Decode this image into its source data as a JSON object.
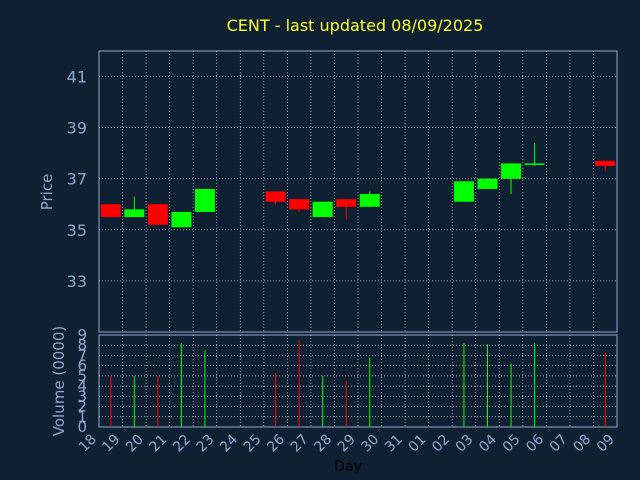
{
  "chart_data": {
    "type": "candlestick",
    "title": "CENT - last updated 08/09/2025",
    "ylabel": "Price",
    "volume_label": "Volume (0000)",
    "xlabel": "Day",
    "ylim": [
      31,
      42
    ],
    "volume_ylim": [
      0,
      9
    ],
    "y_ticks": [
      "33",
      "35",
      "37",
      "39",
      "41"
    ],
    "volume_ticks": [
      "0",
      "1",
      "2",
      "3",
      "4",
      "5",
      "6",
      "7",
      "8",
      "9"
    ],
    "x_ticks": [
      "18",
      "19",
      "20",
      "21",
      "22",
      "23",
      "24",
      "25",
      "26",
      "27",
      "28",
      "29",
      "30",
      "31",
      "01",
      "02",
      "03",
      "04",
      "05",
      "06",
      "07",
      "08",
      "09"
    ],
    "grid": true,
    "colors": {
      "up": "#00ff00",
      "down": "#ff0000",
      "title": "#ffff33",
      "axis": "#8fa8c8",
      "grid": "#ffffff"
    },
    "candles": [
      {
        "day": "18",
        "open": 36.0,
        "high": 36.0,
        "low": 35.5,
        "close": 35.5,
        "volume": 5.0
      },
      {
        "day": "19",
        "open": 35.5,
        "high": 36.3,
        "low": 35.5,
        "close": 35.8,
        "volume": 5.0
      },
      {
        "day": "20",
        "open": 36.0,
        "high": 36.0,
        "low": 35.2,
        "close": 35.2,
        "volume": 5.0
      },
      {
        "day": "21",
        "open": 35.1,
        "high": 35.7,
        "low": 35.1,
        "close": 35.7,
        "volume": 8.2
      },
      {
        "day": "22",
        "open": 35.7,
        "high": 36.6,
        "low": 35.7,
        "close": 36.6,
        "volume": 7.5
      },
      {
        "day": "25",
        "open": 36.5,
        "high": 36.5,
        "low": 36.0,
        "close": 36.1,
        "volume": 5.3
      },
      {
        "day": "26",
        "open": 36.2,
        "high": 36.2,
        "low": 35.7,
        "close": 35.8,
        "volume": 8.5
      },
      {
        "day": "27",
        "open": 35.5,
        "high": 36.1,
        "low": 35.5,
        "close": 36.1,
        "volume": 5.0
      },
      {
        "day": "28",
        "open": 36.2,
        "high": 36.2,
        "low": 35.4,
        "close": 35.9,
        "volume": 4.5
      },
      {
        "day": "29",
        "open": 35.9,
        "high": 36.5,
        "low": 35.9,
        "close": 36.4,
        "volume": 6.8
      },
      {
        "day": "02",
        "open": 36.1,
        "high": 36.9,
        "low": 36.1,
        "close": 36.9,
        "volume": 8.2
      },
      {
        "day": "03",
        "open": 36.6,
        "high": 37.0,
        "low": 36.6,
        "close": 37.0,
        "volume": 8.1
      },
      {
        "day": "04",
        "open": 37.0,
        "high": 37.6,
        "low": 36.4,
        "close": 37.6,
        "volume": 6.2
      },
      {
        "day": "05",
        "open": 37.6,
        "high": 38.4,
        "low": 37.5,
        "close": 37.6,
        "volume": 8.2
      },
      {
        "day": "08",
        "open": 37.7,
        "high": 37.7,
        "low": 37.3,
        "close": 37.5,
        "volume": 7.3
      }
    ]
  }
}
